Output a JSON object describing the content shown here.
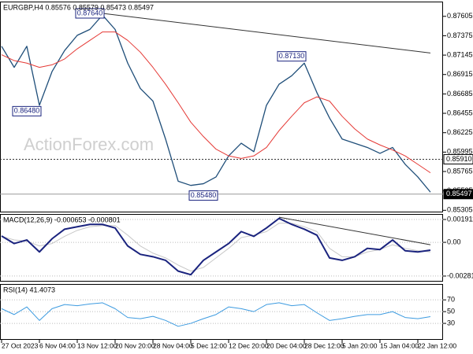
{
  "chart_data": [
    {
      "type": "line",
      "title": "EURGBP,H4 0.85576 0.85579 0.85473 0.85497",
      "watermark": "ActionForex.com",
      "series": [
        {
          "color": "#1f4e79",
          "line_width": 1.3,
          "values": [
            0.8725,
            0.87,
            0.8725,
            0.8655,
            0.8695,
            0.872,
            0.8738,
            0.8745,
            0.8762,
            0.8745,
            0.8705,
            0.8675,
            0.866,
            0.8615,
            0.8565,
            0.856,
            0.8562,
            0.857,
            0.8595,
            0.861,
            0.86,
            0.8655,
            0.868,
            0.869,
            0.8705,
            0.867,
            0.864,
            0.8615,
            0.861,
            0.8605,
            0.8598,
            0.8605,
            0.8585,
            0.857,
            0.8552
          ]
        },
        {
          "color": "#e53935",
          "line_width": 1,
          "values": [
            0.8715,
            0.8708,
            0.8705,
            0.87,
            0.8703,
            0.871,
            0.8722,
            0.8732,
            0.8742,
            0.8742,
            0.8732,
            0.8718,
            0.87,
            0.868,
            0.8658,
            0.8635,
            0.8618,
            0.8603,
            0.8595,
            0.8592,
            0.8595,
            0.8605,
            0.8625,
            0.8642,
            0.8658,
            0.8665,
            0.866,
            0.8642,
            0.8627,
            0.8615,
            0.8608,
            0.8602,
            0.8595,
            0.8585,
            0.8575
          ]
        }
      ],
      "ylim": [
        0.8528,
        0.8778
      ],
      "yticks": [
        0.87605,
        0.87375,
        0.87145,
        0.86915,
        0.86685,
        0.86455,
        0.86225,
        0.85995,
        0.85765,
        0.85535,
        0.85305
      ],
      "grid": false,
      "levels": [
        {
          "value": 0.8591,
          "label": "0.85910",
          "style": "dotted"
        },
        {
          "value": 0.85497,
          "label": "0.85497",
          "style": "current"
        }
      ],
      "annotations": [
        {
          "index": 7,
          "value": 0.8764,
          "label": "0.87640"
        },
        {
          "index": 2,
          "value": 0.8648,
          "label": "0.86480"
        },
        {
          "index": 23,
          "value": 0.8713,
          "label": "0.87130"
        },
        {
          "index": 16,
          "value": 0.8548,
          "label": "0.85480"
        }
      ],
      "trendline": [
        {
          "index": 8,
          "value": 0.8764
        },
        {
          "index": 34,
          "value": 0.8717
        }
      ]
    },
    {
      "type": "line",
      "title": "MACD(12,26,9) -0.000653 -0.000801",
      "series": [
        {
          "color": "#c8c8c8",
          "line_width": 1,
          "values": [
            0.0005,
            0.0002,
            0.0001,
            -0.0003,
            -0.0001,
            0.0005,
            0.001,
            0.0013,
            0.0014,
            0.0014,
            0.0006,
            -0.0003,
            -0.0009,
            -0.0013,
            -0.0019,
            -0.0024,
            -0.0021,
            -0.0013,
            -0.0005,
            0.0004,
            0.0006,
            0.0009,
            0.0016,
            0.0016,
            0.0013,
            0.0009,
            -0.0005,
            -0.0012,
            -0.0012,
            -0.0008,
            -0.0006,
            -0.0002,
            -0.0005,
            -0.0007,
            -0.000801
          ]
        },
        {
          "color": "#1a237e",
          "line_width": 2,
          "values": [
            0.00053,
            -0.0001,
            0.0002,
            -0.0008,
            0.0003,
            0.0011,
            0.0013,
            0.0015,
            0.0015,
            0.0012,
            -0.0003,
            -0.001,
            -0.0012,
            -0.0015,
            -0.0024,
            -0.0027,
            -0.0015,
            -0.0008,
            -0.0001,
            0.0009,
            0.0005,
            0.0012,
            0.002,
            0.0015,
            0.0011,
            0.0006,
            -0.0013,
            -0.0015,
            -0.0012,
            -0.0005,
            -0.0006,
            0.0002,
            -0.0007,
            -0.0008,
            -0.000653
          ]
        }
      ],
      "ylim": [
        -0.00328,
        0.00237
      ],
      "yticks": [
        0.001911,
        {
          "value": 0,
          "label": "0.00"
        },
        -0.002816
      ],
      "grid": true,
      "trendline": [
        {
          "index": 22,
          "value": 0.0021
        },
        {
          "index": 34,
          "value": -0.0002
        }
      ]
    },
    {
      "type": "line",
      "title": "RSI(14) 41.4073",
      "categories": [
        "27 Oct 2023",
        null,
        null,
        "6 Nov 04:00",
        null,
        null,
        "13 Nov 12:00",
        null,
        null,
        "20 Nov 20:00",
        null,
        null,
        "28 Nov 04:00",
        null,
        null,
        "5 Dec 12:00",
        null,
        null,
        "12 Dec 20:00",
        null,
        null,
        "20 Dec 04:00",
        null,
        null,
        "28 Dec 12:00",
        null,
        null,
        "5 Jan 20:00",
        null,
        null,
        "15 Jan 04:00",
        null,
        null,
        "22 Jan 12:00",
        null
      ],
      "series": [
        {
          "color": "#3d9be0",
          "line_width": 1,
          "values": [
            55,
            45,
            58,
            35,
            55,
            62,
            60,
            63,
            65,
            55,
            40,
            38,
            42,
            35,
            25,
            30,
            38,
            45,
            58,
            55,
            50,
            62,
            65,
            60,
            62,
            48,
            35,
            38,
            42,
            45,
            45,
            50,
            40,
            38,
            41.4073
          ]
        }
      ],
      "ylim": [
        2,
        97
      ],
      "yticks": [
        70,
        50,
        30
      ],
      "grid": true
    }
  ]
}
